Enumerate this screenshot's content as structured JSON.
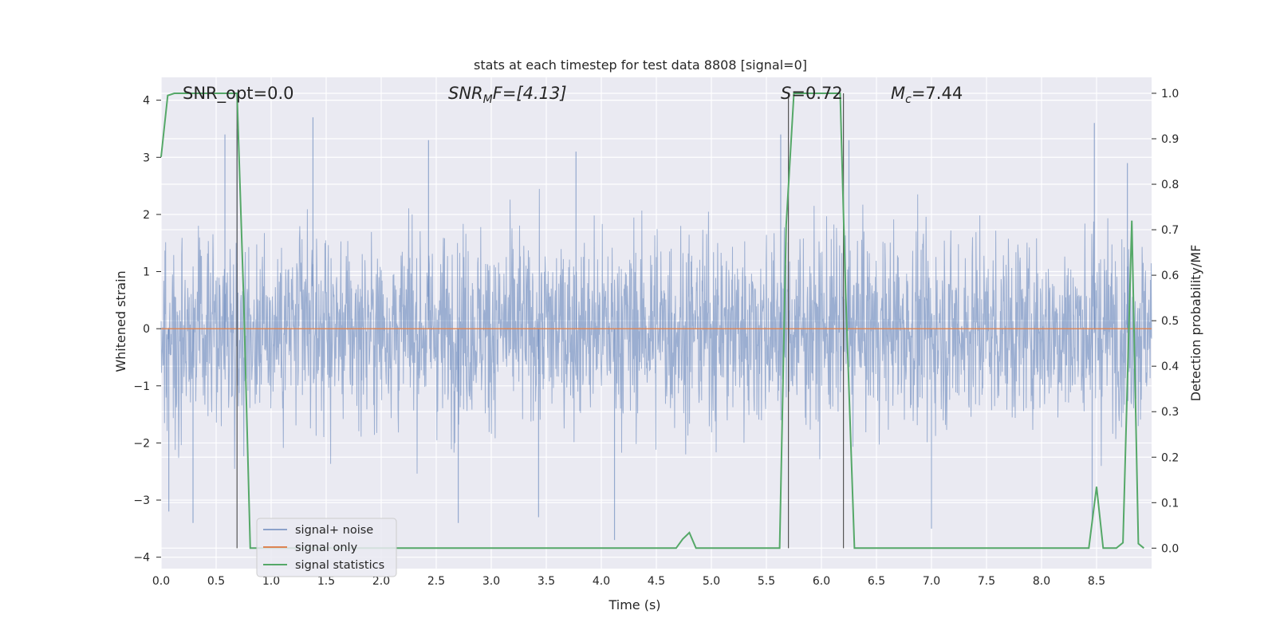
{
  "chart_data": {
    "type": "line",
    "title": "stats at each timestep for test data 8808 [signal=0]",
    "xlabel": "Time (s)",
    "ylabel": "Whitened strain",
    "ylabel_right": "Detection probability/MF",
    "xlim": [
      0.0,
      9.0
    ],
    "ylim": [
      -4.2,
      4.4
    ],
    "ylim_right": [
      -0.045,
      1.035
    ],
    "x_ticks": [
      "0.0",
      "0.5",
      "1.0",
      "1.5",
      "2.0",
      "2.5",
      "3.0",
      "3.5",
      "4.0",
      "4.5",
      "5.0",
      "5.5",
      "6.0",
      "6.5",
      "7.0",
      "7.5",
      "8.0",
      "8.5"
    ],
    "y_ticks": [
      "−4",
      "−3",
      "−2",
      "−1",
      "0",
      "1",
      "2",
      "3",
      "4"
    ],
    "y_right_ticks": [
      "0.0",
      "0.1",
      "0.2",
      "0.3",
      "0.4",
      "0.5",
      "0.6",
      "0.7",
      "0.8",
      "0.9",
      "1.0"
    ],
    "grid": true,
    "legend_position": "lower-left",
    "colors": {
      "background": "#EAEAF2",
      "grid": "#FFFFFF",
      "noise": "#4C72B0",
      "signal": "#DD8452",
      "stats": "#55A868",
      "vline": "#555555"
    },
    "annotations": {
      "snr_opt": "SNR_opt=0.0",
      "snr_mf_pre": "SNR",
      "snr_mf_sub": "M",
      "snr_mf_post": "F=[4.13]",
      "s_pre": "S",
      "s_post": "=0.72",
      "mc_pre": "M",
      "mc_sub": "c",
      "mc_post": "=7.44"
    },
    "vertical_lines_x": [
      0.69,
      5.7,
      6.2
    ],
    "series": [
      {
        "name": "signal+ noise",
        "axis": "left",
        "envelope": "whitened noise spanning approximately -3.4 to 3.6 over 0.0–9.0 s",
        "peaks_x": [
          0.58,
          0.69,
          1.38,
          2.43,
          3.77,
          5.63,
          6.25,
          8.48,
          8.78
        ],
        "peaks_y": [
          3.4,
          3.5,
          3.7,
          3.3,
          3.1,
          3.4,
          3.3,
          3.6,
          2.9
        ],
        "troughs_x": [
          0.07,
          0.29,
          2.7,
          3.43,
          4.12,
          7.0,
          8.46
        ],
        "troughs_y": [
          -3.2,
          -3.4,
          -3.4,
          -3.3,
          -3.7,
          -3.5,
          -3.4
        ]
      },
      {
        "name": "signal only",
        "axis": "left",
        "x": [
          0.0,
          9.0
        ],
        "y": [
          0.0,
          0.0
        ]
      },
      {
        "name": "signal statistics",
        "axis": "right",
        "x": [
          0.0,
          0.06,
          0.12,
          0.6,
          0.69,
          0.75,
          0.81,
          4.68,
          4.74,
          4.8,
          4.86,
          5.62,
          5.68,
          5.75,
          6.17,
          6.22,
          6.3,
          8.43,
          8.5,
          8.56,
          8.68,
          8.74,
          8.82,
          8.88,
          8.93
        ],
        "y": [
          0.86,
          0.995,
          1.0,
          1.0,
          1.0,
          0.55,
          0.0,
          0.0,
          0.02,
          0.034,
          0.0,
          0.0,
          0.71,
          1.0,
          1.0,
          0.56,
          0.0,
          0.0,
          0.135,
          0.0,
          0.0,
          0.012,
          0.72,
          0.01,
          0.0
        ]
      }
    ],
    "legend": [
      "signal+ noise",
      "signal only",
      "signal statistics"
    ]
  }
}
